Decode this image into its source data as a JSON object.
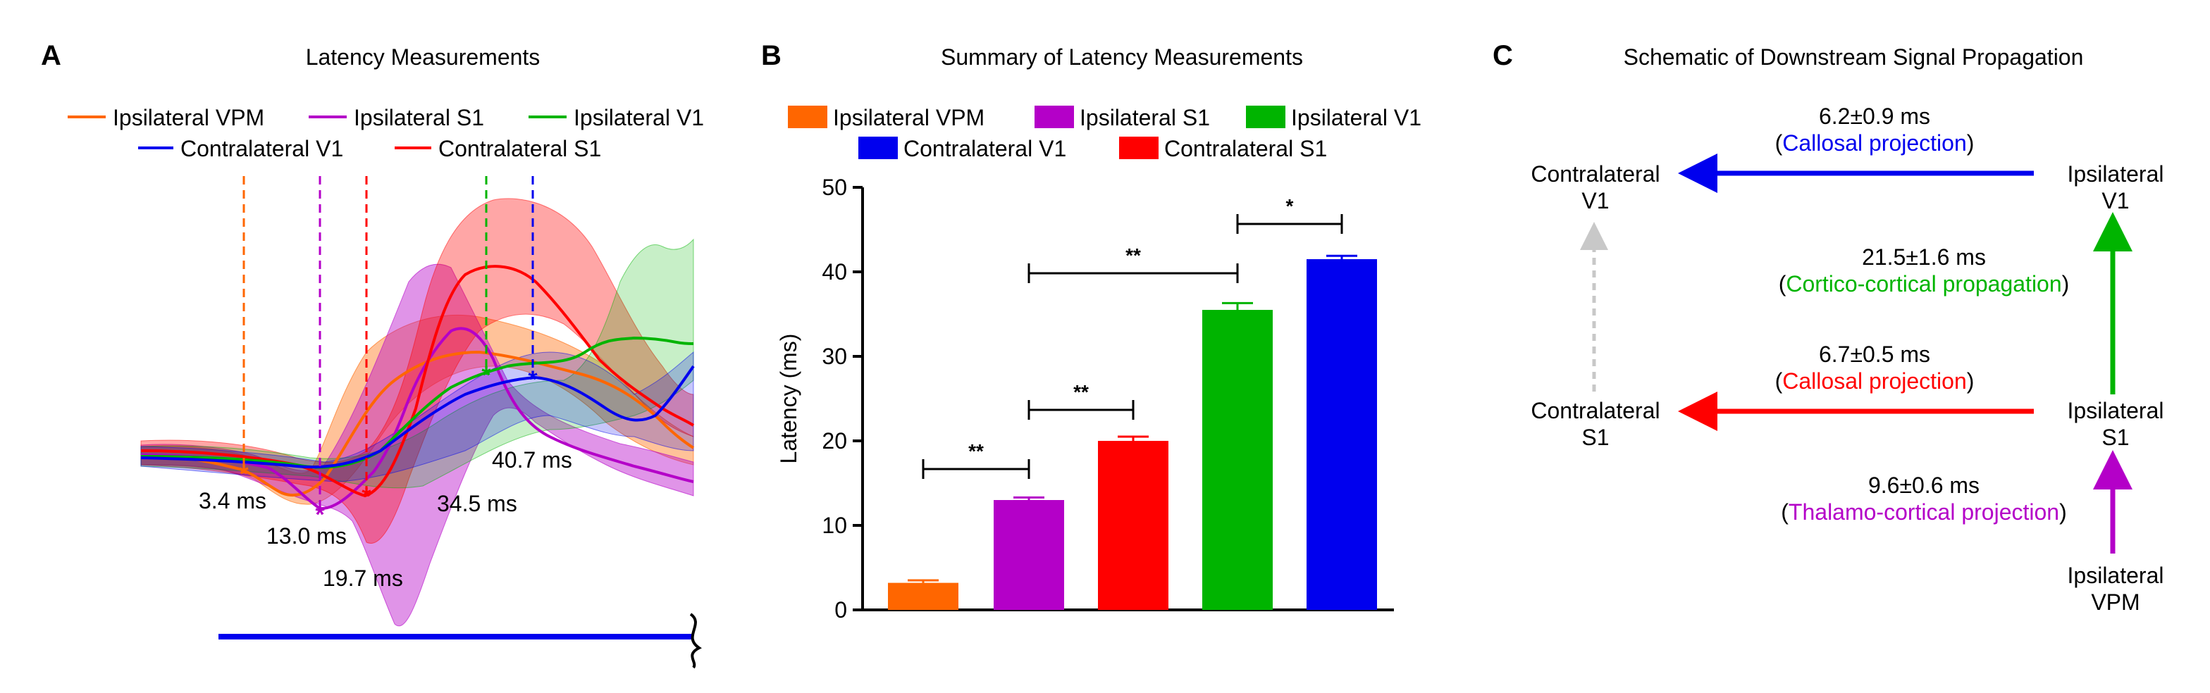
{
  "colors": {
    "vpm": "#ff6600",
    "ipsi_s1": "#b400c8",
    "ipsi_v1": "#00b400",
    "contra_v1": "#0000ee",
    "contra_s1": "#ff0000",
    "gray_arrow": "#c8c8c8"
  },
  "panel_a": {
    "label": "A",
    "title": "Latency Measurements",
    "legend": [
      "Ipsilateral VPM",
      "Ipsilateral S1",
      "Ipsilateral V1",
      "Contralateral V1",
      "Contralateral S1"
    ],
    "latency_labels": [
      "3.4 ms",
      "13.0 ms",
      "19.7 ms",
      "34.5 ms",
      "40.7 ms"
    ]
  },
  "panel_b": {
    "label": "B",
    "title": "Summary of Latency Measurements",
    "legend": [
      "Ipsilateral VPM",
      "Ipsilateral S1",
      "Ipsilateral V1",
      "Contralateral V1",
      "Contralateral S1"
    ],
    "significance": [
      "**",
      "**",
      "**",
      "*"
    ]
  },
  "chart_data": [
    {
      "type": "line",
      "title": "Latency Measurements",
      "series": [
        {
          "name": "Ipsilateral VPM",
          "latency_ms": 3.4
        },
        {
          "name": "Ipsilateral S1",
          "latency_ms": 13.0
        },
        {
          "name": "Contralateral S1",
          "latency_ms": 19.7
        },
        {
          "name": "Ipsilateral V1",
          "latency_ms": 34.5
        },
        {
          "name": "Contralateral V1",
          "latency_ms": 40.7
        }
      ]
    },
    {
      "type": "bar",
      "title": "Summary of Latency Measurements",
      "categories": [
        "Ipsilateral VPM",
        "Ipsilateral S1",
        "Contralateral S1",
        "Ipsilateral V1",
        "Contralateral V1"
      ],
      "values": [
        3.2,
        13.0,
        20.0,
        35.5,
        41.5
      ],
      "errors": [
        0.3,
        0.3,
        0.5,
        0.8,
        0.4
      ],
      "ylabel": "Latency (ms)",
      "xlabel": "",
      "ylim": [
        0,
        50
      ],
      "yticks": [
        0,
        10,
        20,
        30,
        40,
        50
      ],
      "comparisons": [
        {
          "from": 0,
          "to": 1,
          "label": "**"
        },
        {
          "from": 1,
          "to": 2,
          "label": "**"
        },
        {
          "from": 1,
          "to": 3,
          "label": "**"
        },
        {
          "from": 3,
          "to": 4,
          "label": "*"
        }
      ]
    }
  ],
  "panel_c": {
    "label": "C",
    "title": "Schematic of Downstream Signal Propagation",
    "nodes": {
      "contra_v1": [
        "Contralateral",
        "V1"
      ],
      "ipsi_v1": [
        "Ipsilateral",
        "V1"
      ],
      "contra_s1": [
        "Contralateral",
        "S1"
      ],
      "ipsi_s1": [
        "Ipsilateral",
        "S1"
      ],
      "ipsi_vpm": [
        "Ipsilateral",
        "VPM"
      ]
    },
    "edges": [
      {
        "time": "6.2±0.9 ms",
        "desc": "Callosal projection"
      },
      {
        "time": "21.5±1.6 ms",
        "desc": "Cortico-cortical propagation"
      },
      {
        "time": "6.7±0.5 ms",
        "desc": "Callosal projection"
      },
      {
        "time": "9.6±0.6 ms",
        "desc": "Thalamo-cortical projection"
      }
    ]
  }
}
